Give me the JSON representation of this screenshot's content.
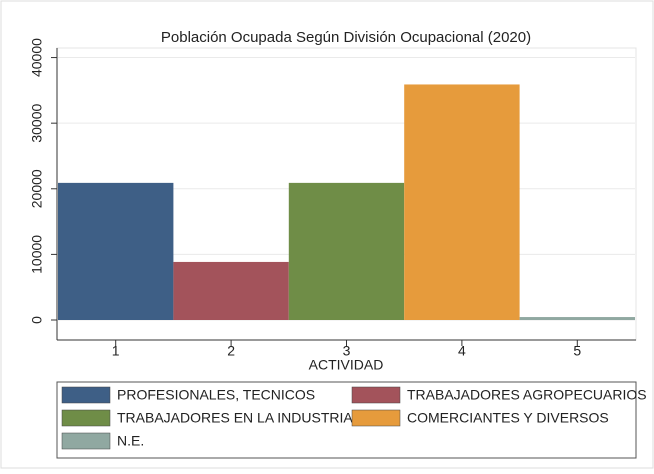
{
  "chart_data": {
    "type": "bar",
    "title": "Población Ocupada Según División Ocupacional (2020)",
    "x_label": "ACTIVIDAD",
    "categories": [
      "1",
      "2",
      "3",
      "4",
      "5"
    ],
    "values": [
      20900,
      8850,
      20900,
      35900,
      450
    ],
    "colors": [
      "#3e5f86",
      "#a3535b",
      "#6f8d47",
      "#e69b3c",
      "#90a8a1"
    ],
    "legend": [
      "PROFESIONALES, TECNICOS",
      "TRABAJADORES AGROPECUARIOS",
      "TRABAJADORES EN LA INDUSTRIA",
      "COMERCIANTES Y DIVERSOS",
      "N.E."
    ],
    "ylim": [
      0,
      41000
    ],
    "yticks": [
      0,
      10000,
      20000,
      30000,
      40000
    ],
    "grid": true
  }
}
